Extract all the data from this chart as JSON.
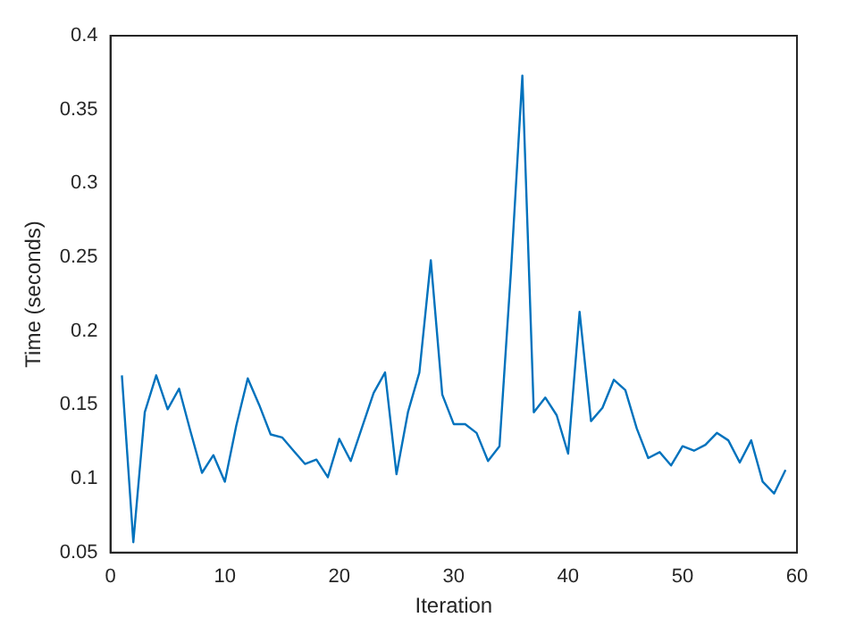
{
  "chart_data": {
    "type": "line",
    "xlabel": "Iteration",
    "ylabel": "Time (seconds)",
    "x": [
      1,
      2,
      3,
      4,
      5,
      6,
      7,
      8,
      9,
      10,
      11,
      12,
      13,
      14,
      15,
      16,
      17,
      18,
      19,
      20,
      21,
      22,
      23,
      24,
      25,
      26,
      27,
      28,
      29,
      30,
      31,
      32,
      33,
      34,
      35,
      36,
      37,
      38,
      39,
      40,
      41,
      42,
      43,
      44,
      45,
      46,
      47,
      48,
      49,
      50,
      51,
      52,
      53,
      54,
      55,
      56,
      57,
      58,
      59
    ],
    "series": [
      {
        "color": "#0072bd",
        "values": [
          0.17,
          0.057,
          0.145,
          0.17,
          0.147,
          0.161,
          0.132,
          0.104,
          0.116,
          0.098,
          0.136,
          0.168,
          0.15,
          0.13,
          0.128,
          0.119,
          0.11,
          0.113,
          0.101,
          0.127,
          0.112,
          0.135,
          0.158,
          0.172,
          0.103,
          0.145,
          0.172,
          0.248,
          0.157,
          0.137,
          0.137,
          0.131,
          0.112,
          0.122,
          0.24,
          0.373,
          0.145,
          0.155,
          0.143,
          0.117,
          0.213,
          0.139,
          0.148,
          0.167,
          0.16,
          0.134,
          0.114,
          0.118,
          0.109,
          0.122,
          0.119,
          0.123,
          0.131,
          0.126,
          0.111,
          0.126,
          0.098,
          0.09,
          0.106
        ]
      }
    ],
    "xlim": [
      0,
      60
    ],
    "xticks": [
      0,
      10,
      20,
      30,
      40,
      50,
      60
    ],
    "ylim": [
      0.05,
      0.4
    ],
    "yticks": [
      0.05,
      0.1,
      0.15,
      0.2,
      0.25,
      0.3,
      0.35,
      0.4
    ],
    "grid": false,
    "legend": false,
    "marker": "none",
    "line_style": "solid"
  }
}
